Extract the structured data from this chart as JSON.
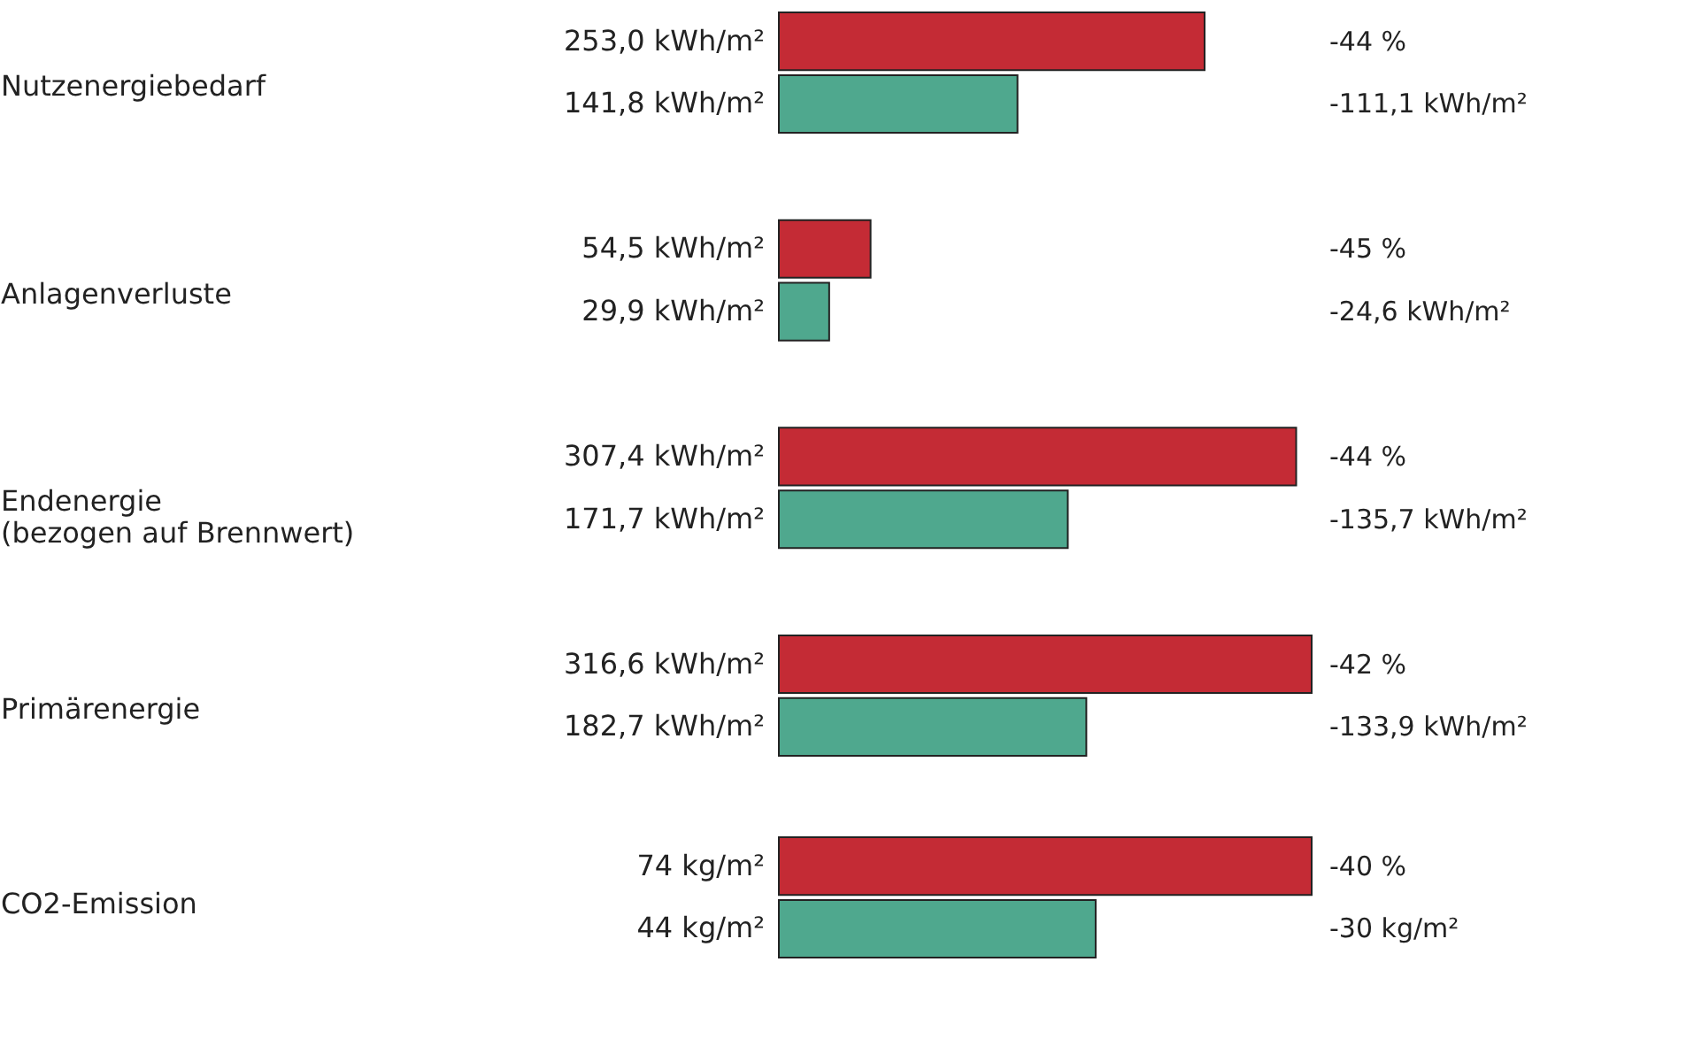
{
  "chart_data": [
    {
      "type": "bar",
      "orientation": "horizontal",
      "categories": [
        "Nutzenergiebedarf",
        "Anlagenverluste",
        "Endenergie\n(bezogen auf Brennwert)",
        "Primärenergie"
      ],
      "series": [
        {
          "color": "#c42b35",
          "values": [
            253.0,
            54.5,
            307.4,
            316.6
          ],
          "value_labels": [
            "253,0 kWh/m²",
            "54,5 kWh/m²",
            "307,4 kWh/m²",
            "316,6 kWh/m²"
          ]
        },
        {
          "color": "#4fa88e",
          "values": [
            141.8,
            29.9,
            171.7,
            182.7
          ],
          "value_labels": [
            "141,8 kWh/m²",
            "29,9 kWh/m²",
            "171,7 kWh/m²",
            "182,7 kWh/m²"
          ]
        }
      ],
      "annotations": [
        "-44 %",
        "-111,1 kWh/m²",
        "-45 %",
        "-24,6 kWh/m²",
        "-44 %",
        "-135,7 kWh/m²",
        "-42 %",
        "-133,9 kWh/m²"
      ]
    },
    {
      "type": "bar",
      "orientation": "horizontal",
      "categories": [
        "CO2-Emission"
      ],
      "series": [
        {
          "color": "#c42b35",
          "values": [
            74
          ],
          "value_labels": [
            "74 kg/m²"
          ]
        },
        {
          "color": "#4fa88e",
          "values": [
            44
          ],
          "value_labels": [
            "44 kg/m²"
          ]
        }
      ],
      "annotations": [
        "-40 %",
        "-30 kg/m²"
      ]
    }
  ]
}
